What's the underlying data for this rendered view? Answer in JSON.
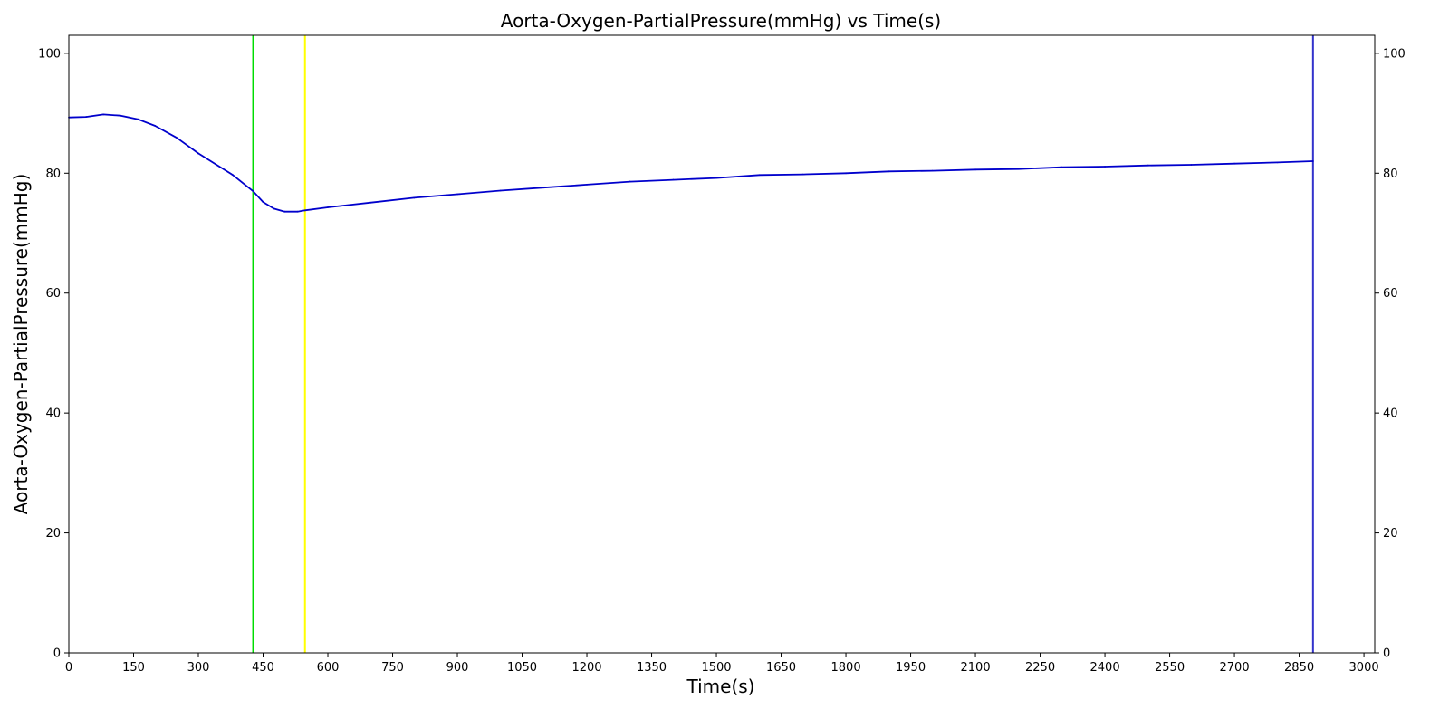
{
  "chart_data": {
    "type": "line",
    "title": "Aorta-Oxygen-PartialPressure(mmHg) vs Time(s)",
    "xlabel": "Time(s)",
    "ylabel": "Aorta-Oxygen-PartialPressure(mmHg)",
    "xlim": [
      0,
      3025
    ],
    "ylim": [
      0,
      103
    ],
    "x_ticks": [
      0,
      150,
      300,
      450,
      600,
      750,
      900,
      1050,
      1200,
      1350,
      1500,
      1650,
      1800,
      1950,
      2100,
      2250,
      2400,
      2550,
      2700,
      2850,
      3000
    ],
    "y_ticks": [
      0,
      20,
      40,
      60,
      80,
      100
    ],
    "right_axis_ticks": true,
    "grid": false,
    "vertical_markers": [
      {
        "x": 427,
        "color": "#00dd00"
      },
      {
        "x": 547,
        "color": "#ffff00"
      },
      {
        "x": 2882,
        "color": "#3333cc"
      }
    ],
    "series": [
      {
        "color": "#0000cc",
        "x": [
          0,
          40,
          80,
          120,
          160,
          200,
          250,
          300,
          340,
          380,
          427,
          450,
          475,
          500,
          530,
          547,
          600,
          700,
          800,
          900,
          1000,
          1100,
          1200,
          1300,
          1400,
          1500,
          1600,
          1700,
          1800,
          1900,
          2000,
          2100,
          2200,
          2300,
          2400,
          2500,
          2600,
          2700,
          2800,
          2882
        ],
        "y": [
          89.3,
          89.4,
          89.8,
          89.6,
          89.0,
          87.9,
          85.9,
          83.3,
          81.5,
          79.7,
          77.0,
          75.2,
          74.1,
          73.6,
          73.6,
          73.8,
          74.3,
          75.1,
          75.9,
          76.5,
          77.1,
          77.6,
          78.1,
          78.6,
          78.9,
          79.2,
          79.7,
          79.8,
          80.0,
          80.3,
          80.4,
          80.6,
          80.7,
          81.0,
          81.1,
          81.3,
          81.4,
          81.6,
          81.8,
          82.0
        ]
      }
    ]
  }
}
